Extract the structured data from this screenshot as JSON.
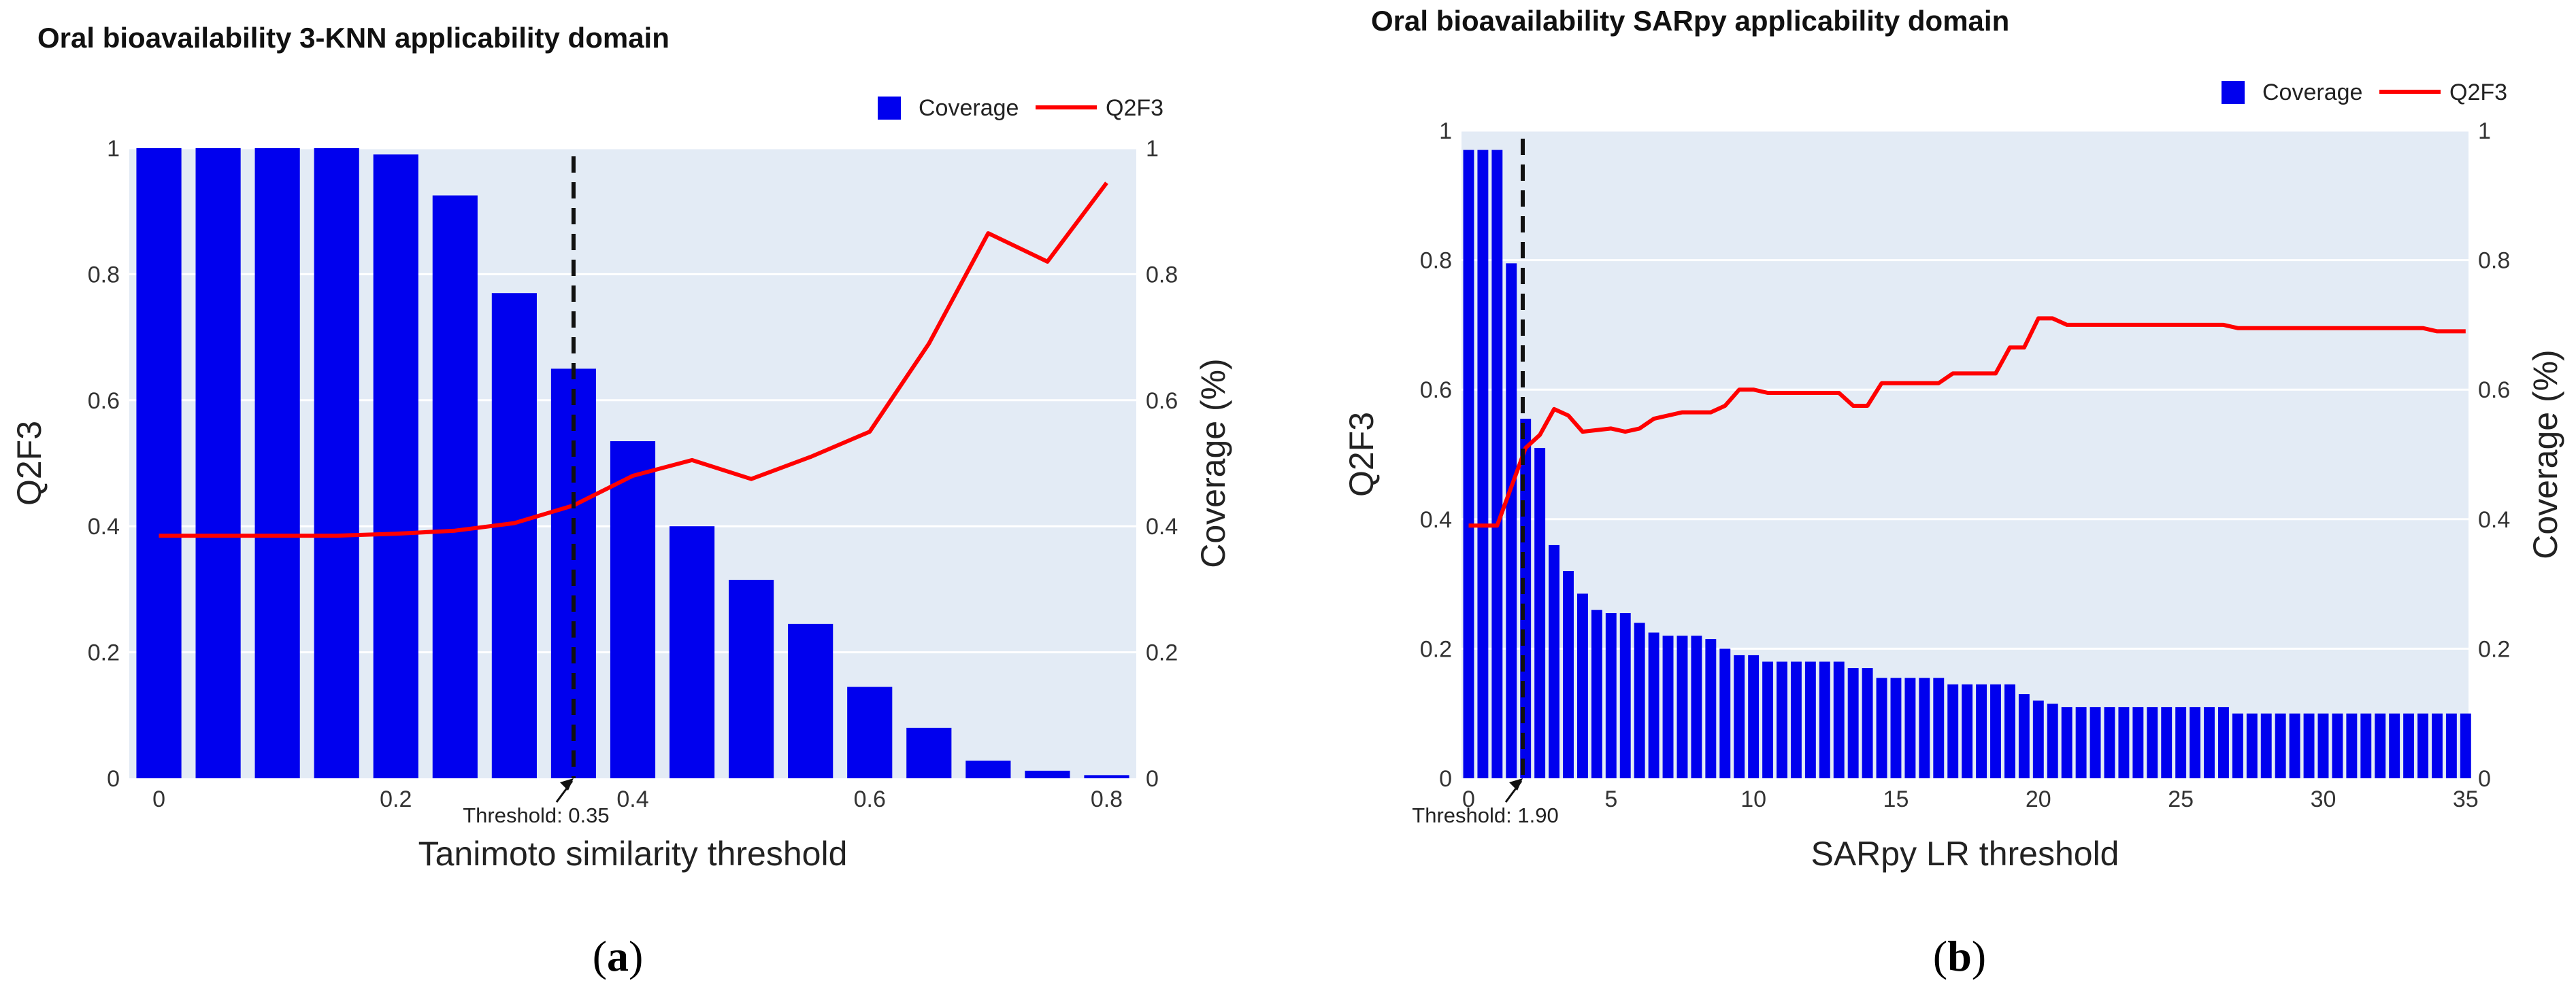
{
  "chart_data": [
    {
      "panel": "(a)",
      "panel_letter": "a",
      "type": "bar+line",
      "title": "Oral bioavailability 3-KNN applicability domain",
      "xlabel": "Tanimoto similarity threshold",
      "ylabel_left": "Q2F3",
      "ylabel_right": "Coverage (%)",
      "xlim": [
        -0.025,
        0.825
      ],
      "ylim": [
        0,
        1
      ],
      "xticks": [
        0,
        0.2,
        0.4,
        0.6,
        0.8
      ],
      "xtick_labels": [
        "0",
        "0.2",
        "0.4",
        "0.6",
        "0.8"
      ],
      "yticks": [
        0,
        0.2,
        0.4,
        0.6,
        0.8,
        1
      ],
      "ytick_labels_left": [
        "0",
        "0.2",
        "0.4",
        "0.6",
        "0.8",
        "1"
      ],
      "ytick_labels_right": [
        "0",
        "0.2",
        "0.4",
        "0.6",
        "0.8",
        "1"
      ],
      "bar_width": 0.038,
      "legend": [
        {
          "name": "Coverage",
          "kind": "bar",
          "color": "#0000ee"
        },
        {
          "name": "Q2F3",
          "kind": "line",
          "color": "#ff0000"
        }
      ],
      "threshold": {
        "x": 0.35,
        "label": "Threshold: 0.35"
      },
      "series": [
        {
          "name": "Coverage",
          "kind": "bar",
          "color": "#0000ee",
          "x": [
            0,
            0.05,
            0.1,
            0.15,
            0.2,
            0.25,
            0.3,
            0.35,
            0.4,
            0.45,
            0.5,
            0.55,
            0.6,
            0.65,
            0.7,
            0.75,
            0.8
          ],
          "values": [
            1.0,
            1.0,
            1.0,
            1.0,
            0.99,
            0.925,
            0.77,
            0.65,
            0.535,
            0.4,
            0.315,
            0.245,
            0.145,
            0.08,
            0.028,
            0.012,
            0.005
          ]
        },
        {
          "name": "Q2F3",
          "kind": "line",
          "color": "#ff0000",
          "x": [
            0,
            0.05,
            0.1,
            0.15,
            0.2,
            0.25,
            0.3,
            0.35,
            0.4,
            0.45,
            0.5,
            0.55,
            0.6,
            0.65,
            0.7,
            0.75,
            0.8
          ],
          "values": [
            0.385,
            0.385,
            0.385,
            0.385,
            0.388,
            0.393,
            0.405,
            0.433,
            0.48,
            0.505,
            0.475,
            0.51,
            0.55,
            0.69,
            0.865,
            0.82,
            0.945
          ]
        }
      ]
    },
    {
      "panel": "(b)",
      "panel_letter": "b",
      "type": "bar+line",
      "title": "Oral bioavailability SARpy applicability domain",
      "xlabel": "SARpy LR threshold",
      "ylabel_left": "Q2F3",
      "ylabel_right": "Coverage (%)",
      "xlim": [
        -0.25,
        35.1
      ],
      "ylim": [
        0,
        1
      ],
      "xticks": [
        0,
        5,
        10,
        15,
        20,
        25,
        30,
        35
      ],
      "xtick_labels": [
        "0",
        "5",
        "10",
        "15",
        "20",
        "25",
        "30",
        "35"
      ],
      "yticks": [
        0,
        0.2,
        0.4,
        0.6,
        0.8,
        1
      ],
      "ytick_labels_left": [
        "0",
        "0.2",
        "0.4",
        "0.6",
        "0.8",
        "1"
      ],
      "ytick_labels_right": [
        "0",
        "0.2",
        "0.4",
        "0.6",
        "0.8",
        "1"
      ],
      "bar_width": 0.38,
      "legend": [
        {
          "name": "Coverage",
          "kind": "bar",
          "color": "#0000ee"
        },
        {
          "name": "Q2F3",
          "kind": "line",
          "color": "#ff0000"
        }
      ],
      "threshold": {
        "x": 1.9,
        "label": "Threshold: 1.90"
      },
      "series": [
        {
          "name": "Coverage",
          "kind": "bar",
          "color": "#0000ee",
          "x": [
            0,
            0.5,
            1,
            1.5,
            2,
            2.5,
            3,
            3.5,
            4,
            4.5,
            5,
            5.5,
            6,
            6.5,
            7,
            7.5,
            8,
            8.5,
            9,
            9.5,
            10,
            10.5,
            11,
            11.5,
            12,
            12.5,
            13,
            13.5,
            14,
            14.5,
            15,
            15.5,
            16,
            16.5,
            17,
            17.5,
            18,
            18.5,
            19,
            19.5,
            20,
            20.5,
            21,
            21.5,
            22,
            22.5,
            23,
            23.5,
            24,
            24.5,
            25,
            25.5,
            26,
            26.5,
            27,
            27.5,
            28,
            28.5,
            29,
            29.5,
            30,
            30.5,
            31,
            31.5,
            32,
            32.5,
            33,
            33.5,
            34,
            34.5,
            35
          ],
          "values": [
            0.97,
            0.97,
            0.97,
            0.795,
            0.555,
            0.51,
            0.36,
            0.32,
            0.285,
            0.26,
            0.255,
            0.255,
            0.24,
            0.225,
            0.22,
            0.22,
            0.22,
            0.215,
            0.2,
            0.19,
            0.19,
            0.18,
            0.18,
            0.18,
            0.18,
            0.18,
            0.18,
            0.17,
            0.17,
            0.155,
            0.155,
            0.155,
            0.155,
            0.155,
            0.145,
            0.145,
            0.145,
            0.145,
            0.145,
            0.13,
            0.12,
            0.115,
            0.11,
            0.11,
            0.11,
            0.11,
            0.11,
            0.11,
            0.11,
            0.11,
            0.11,
            0.11,
            0.11,
            0.11,
            0.1,
            0.1,
            0.1,
            0.1,
            0.1,
            0.1,
            0.1,
            0.1,
            0.1,
            0.1,
            0.1,
            0.1,
            0.1,
            0.1,
            0.1,
            0.1,
            0.1
          ]
        },
        {
          "name": "Q2F3",
          "kind": "line",
          "color": "#ff0000",
          "x": [
            0,
            1,
            1.5,
            2,
            2.5,
            3,
            3.5,
            4,
            5,
            5.5,
            6,
            6.5,
            7,
            7.5,
            8,
            8.5,
            9,
            9.5,
            10,
            10.5,
            11,
            12,
            13,
            13.5,
            14,
            14.5,
            15,
            16,
            16.5,
            17,
            18,
            18.5,
            19,
            19.5,
            20,
            20.5,
            21,
            22,
            25,
            26.5,
            27,
            30,
            33,
            33.5,
            34,
            35
          ],
          "values": [
            0.39,
            0.39,
            0.45,
            0.51,
            0.53,
            0.57,
            0.56,
            0.535,
            0.54,
            0.535,
            0.54,
            0.555,
            0.56,
            0.565,
            0.565,
            0.565,
            0.575,
            0.6,
            0.6,
            0.595,
            0.595,
            0.595,
            0.595,
            0.575,
            0.575,
            0.61,
            0.61,
            0.61,
            0.61,
            0.625,
            0.625,
            0.625,
            0.665,
            0.665,
            0.71,
            0.71,
            0.7,
            0.7,
            0.7,
            0.7,
            0.695,
            0.695,
            0.695,
            0.695,
            0.69,
            0.69
          ]
        }
      ]
    }
  ]
}
